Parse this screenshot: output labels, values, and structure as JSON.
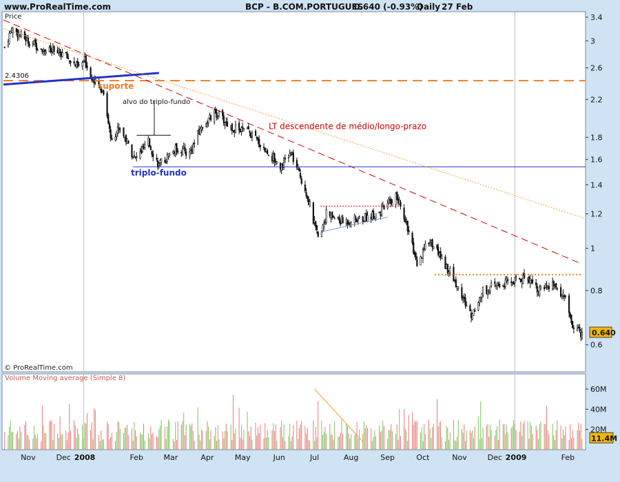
{
  "header": {
    "site": "www.ProRealTime.com",
    "title": "BCP - B.COM.PORTUGUES",
    "quote": "0.640 (-0.93%)",
    "period": "Daily",
    "date": "27 Feb"
  },
  "copyright": "© ProRealTime.com",
  "colors": {
    "background": "#cfe3f5",
    "plot_background": "#ffffff",
    "bear_candle": "#111111",
    "bull_candle": "#ffffff",
    "support_orange": "#f07c22",
    "trend_red": "#d00000",
    "trend_blue": "#2233cc",
    "volume_green": "#7cc55a",
    "volume_red": "#e87a7a",
    "price_badge": "#f5b800"
  },
  "chart_data": [
    {
      "type": "candlestick",
      "panel": "price",
      "ylabel": "Price",
      "scale": "log",
      "ylim": [
        0.52,
        3.5
      ],
      "y_ticks": [
        "0.6",
        "0.8",
        "1",
        "1.2",
        "1.4",
        "1.6",
        "1.8",
        "2.2",
        "2.6",
        "3",
        "3.4"
      ],
      "x_ticks": [
        "Nov",
        "Dec",
        "2008",
        "Feb",
        "Mar",
        "Apr",
        "May",
        "Jun",
        "Jul",
        "Aug",
        "Sep",
        "Oct",
        "Nov",
        "Dec",
        "2009",
        "Feb"
      ],
      "last_price": "0.640",
      "close_path": [
        [
          "2007-10-26",
          2.9
        ],
        [
          "2007-11-01",
          3.2
        ],
        [
          "2007-11-15",
          3.0
        ],
        [
          "2007-12-01",
          2.85
        ],
        [
          "2007-12-15",
          2.8
        ],
        [
          "2007-12-27",
          2.6
        ],
        [
          "2008-01-02",
          2.7
        ],
        [
          "2008-01-10",
          2.4
        ],
        [
          "2008-01-18",
          2.3
        ],
        [
          "2008-01-24",
          1.8
        ],
        [
          "2008-02-01",
          1.9
        ],
        [
          "2008-02-14",
          1.6
        ],
        [
          "2008-02-25",
          1.75
        ],
        [
          "2008-03-05",
          1.55
        ],
        [
          "2008-03-20",
          1.7
        ],
        [
          "2008-03-31",
          1.65
        ],
        [
          "2008-04-10",
          1.9
        ],
        [
          "2008-04-22",
          2.05
        ],
        [
          "2008-05-05",
          1.9
        ],
        [
          "2008-05-20",
          1.85
        ],
        [
          "2008-06-02",
          1.7
        ],
        [
          "2008-06-16",
          1.55
        ],
        [
          "2008-06-25",
          1.65
        ],
        [
          "2008-07-08",
          1.35
        ],
        [
          "2008-07-18",
          1.05
        ],
        [
          "2008-07-25",
          1.2
        ],
        [
          "2008-08-08",
          1.15
        ],
        [
          "2008-08-25",
          1.17
        ],
        [
          "2008-09-10",
          1.22
        ],
        [
          "2008-09-22",
          1.32
        ],
        [
          "2008-10-01",
          1.15
        ],
        [
          "2008-10-10",
          0.9
        ],
        [
          "2008-10-20",
          1.05
        ],
        [
          "2008-10-31",
          0.95
        ],
        [
          "2008-11-10",
          0.85
        ],
        [
          "2008-11-25",
          0.7
        ],
        [
          "2008-12-05",
          0.8
        ],
        [
          "2008-12-17",
          0.82
        ],
        [
          "2008-12-30",
          0.84
        ],
        [
          "2009-01-12",
          0.86
        ],
        [
          "2009-01-22",
          0.8
        ],
        [
          "2009-02-02",
          0.82
        ],
        [
          "2009-02-12",
          0.78
        ],
        [
          "2009-02-20",
          0.65
        ],
        [
          "2009-02-27",
          0.64
        ]
      ],
      "annotations": {
        "support_value": "2.4306",
        "support_label": "suporte",
        "target_label": "alvo do triplo-fundo",
        "triple_bottom_label": "triplo-fundo",
        "trendline_label": "LT descendente de médio/longo-prazo"
      },
      "levels": {
        "support": 2.43,
        "triple_bottom": 1.54,
        "target_level": 1.82,
        "rectangle_top_2008_aug": 1.25,
        "resistance_2008_dec": 0.87
      }
    },
    {
      "type": "bar",
      "panel": "volume",
      "title": "Volume Moving average (Simple 8)",
      "ylim": [
        0,
        75
      ],
      "y_ticks": [
        "20M",
        "40M",
        "60M"
      ],
      "last_value": "11.4M",
      "unit": "M"
    }
  ]
}
